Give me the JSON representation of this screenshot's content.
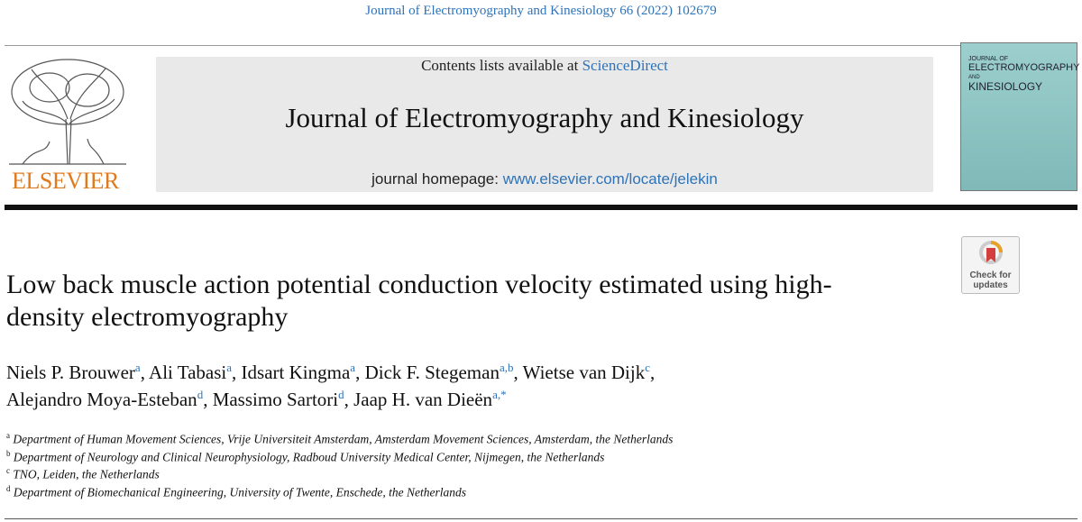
{
  "journal_ref": "Journal of Electromyography and Kinesiology 66 (2022) 102679",
  "header": {
    "contents_prefix": "Contents lists available at",
    "contents_link": "ScienceDirect",
    "journal_title": "Journal of Electromyography and Kinesiology",
    "homepage_prefix": "journal homepage:",
    "homepage_link": "www.elsevier.com/locate/jelekin"
  },
  "publisher": "ELSEVIER",
  "cover": {
    "lines": [
      "JOURNAL OF",
      "ELECTROMYOGRAPHY",
      "AND",
      "KINESIOLOGY"
    ]
  },
  "badge": {
    "lines": [
      "Check for",
      "updates"
    ]
  },
  "article_title": "Low back muscle action potential conduction velocity estimated using high-density electromyography",
  "author_lines": [
    [
      {
        "name": "Niels P. Brouwer",
        "affil": "a",
        "sep": ","
      },
      {
        "name": "Ali Tabasi",
        "affil": "a",
        "sep": ","
      },
      {
        "name": "Idsart Kingma",
        "affil": "a",
        "sep": ","
      },
      {
        "name": "Dick F. Stegeman",
        "affil": "a,b",
        "sep": ","
      },
      {
        "name": "Wietse van Dijk",
        "affil": "c",
        "sep": ","
      }
    ],
    [
      {
        "name": "Alejandro Moya-Esteban",
        "affil": "d",
        "sep": ","
      },
      {
        "name": "Massimo Sartori",
        "affil": "d",
        "sep": ","
      },
      {
        "name": "Jaap H. van Dieën",
        "affil": "a,*"
      }
    ]
  ],
  "affiliations": [
    {
      "label": "a",
      "text": "Department of Human Movement Sciences, Vrije Universiteit Amsterdam, Amsterdam Movement Sciences, Amsterdam, the Netherlands"
    },
    {
      "label": "b",
      "text": "Department of Neurology and Clinical Neurophysiology, Radboud University Medical Center, Nijmegen, the Netherlands"
    },
    {
      "label": "c",
      "text": "TNO, Leiden, the Netherlands"
    },
    {
      "label": "d",
      "text": "Department of Biomechanical Engineering, University of Twente, Enschede, the Netherlands"
    }
  ]
}
